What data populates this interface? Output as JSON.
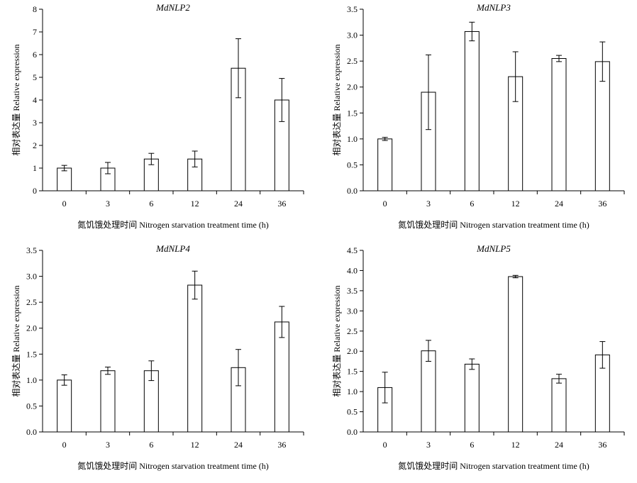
{
  "chart_data": [
    {
      "type": "bar",
      "title": "MdNLP2",
      "xlabel": "氮饥饿处理时间 Nitrogen starvation treatment time (h)",
      "ylabel": "相对表达量 Relative expression",
      "categories": [
        "0",
        "3",
        "6",
        "12",
        "24",
        "36"
      ],
      "values": [
        1.0,
        1.0,
        1.4,
        1.4,
        5.4,
        4.0
      ],
      "errors": [
        0.12,
        0.25,
        0.25,
        0.35,
        1.3,
        0.95
      ],
      "ylim": [
        0,
        8
      ],
      "yticks": [
        "0",
        "1",
        "2",
        "3",
        "4",
        "5",
        "6",
        "7",
        "8"
      ]
    },
    {
      "type": "bar",
      "title": "MdNLP3",
      "xlabel": "氮饥饿处理时间 Nitrogen starvation treatment time (h)",
      "ylabel": "相对表达量 Relative expression",
      "categories": [
        "0",
        "3",
        "6",
        "12",
        "24",
        "36"
      ],
      "values": [
        1.0,
        1.9,
        3.07,
        2.2,
        2.55,
        2.49
      ],
      "errors": [
        0.03,
        0.72,
        0.18,
        0.48,
        0.06,
        0.38
      ],
      "ylim": [
        0,
        3.5
      ],
      "yticks": [
        "0.0",
        "0.5",
        "1.0",
        "1.5",
        "2.0",
        "2.5",
        "3.0",
        "3.5"
      ]
    },
    {
      "type": "bar",
      "title": "MdNLP4",
      "xlabel": "氮饥饿处理时间 Nitrogen starvation treatment time (h)",
      "ylabel": "相对表达量 Relative expression",
      "categories": [
        "0",
        "3",
        "6",
        "12",
        "24",
        "36"
      ],
      "values": [
        1.0,
        1.18,
        1.18,
        2.83,
        1.24,
        2.12
      ],
      "errors": [
        0.1,
        0.07,
        0.19,
        0.27,
        0.35,
        0.3
      ],
      "ylim": [
        0,
        3.5
      ],
      "yticks": [
        "0.0",
        "0.5",
        "1.0",
        "1.5",
        "2.0",
        "2.5",
        "3.0",
        "3.5"
      ]
    },
    {
      "type": "bar",
      "title": "MdNLP5",
      "xlabel": "氮饥饿处理时间 Nitrogen starvation treatment time (h)",
      "ylabel": "相对表达量 Relative expression",
      "categories": [
        "0",
        "3",
        "6",
        "12",
        "24",
        "36"
      ],
      "values": [
        1.1,
        2.01,
        1.68,
        3.85,
        1.32,
        1.91
      ],
      "errors": [
        0.38,
        0.26,
        0.13,
        0.03,
        0.11,
        0.33
      ],
      "ylim": [
        0,
        4.5
      ],
      "yticks": [
        "0.0",
        "0.5",
        "1.0",
        "1.5",
        "2.0",
        "2.5",
        "3.0",
        "3.5",
        "4.0",
        "4.5"
      ]
    }
  ]
}
